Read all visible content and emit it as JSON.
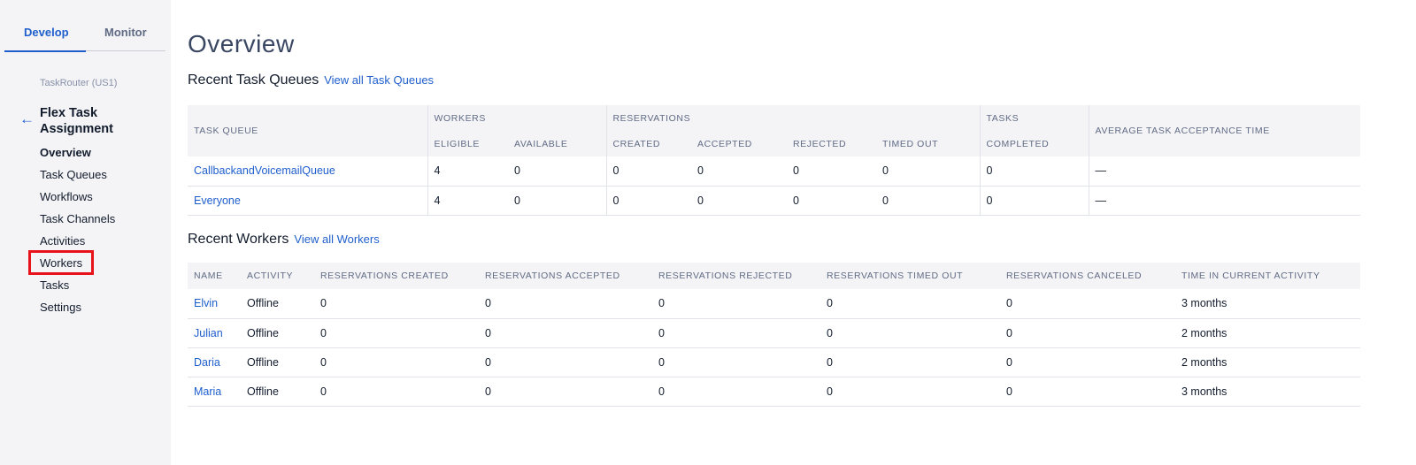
{
  "sidebar": {
    "tabs": {
      "develop": "Develop",
      "monitor": "Monitor"
    },
    "breadcrumb": "TaskRouter (US1)",
    "service": "Flex Task Assignment",
    "back_icon": "arrow-left-icon",
    "items": [
      "Overview",
      "Task Queues",
      "Workflows",
      "Task Channels",
      "Activities",
      "Workers",
      "Tasks",
      "Settings"
    ],
    "active": "Overview",
    "highlighted": "Workers"
  },
  "colors": {
    "accent": "#1f5fcc",
    "highlight": "#e8121a"
  },
  "page_title": "Overview",
  "queues": {
    "title": "Recent Task Queues",
    "link": "View all Task Queues",
    "headers": {
      "task_queue": "TASK QUEUE",
      "workers": "WORKERS",
      "reservations": "RESERVATIONS",
      "tasks": "TASKS",
      "avg": "AVERAGE TASK ACCEPTANCE TIME",
      "eligible": "ELIGIBLE",
      "available": "AVAILABLE",
      "created": "CREATED",
      "accepted": "ACCEPTED",
      "rejected": "REJECTED",
      "timed_out": "TIMED OUT",
      "completed": "COMPLETED"
    },
    "rows": [
      [
        "CallbackandVoicemailQueue",
        "4",
        "0",
        "0",
        "0",
        "0",
        "0",
        "0",
        "—"
      ],
      [
        "Everyone",
        "4",
        "0",
        "0",
        "0",
        "0",
        "0",
        "0",
        "—"
      ]
    ]
  },
  "workers": {
    "title": "Recent Workers",
    "link": "View all Workers",
    "headers": [
      "NAME",
      "ACTIVITY",
      "RESERVATIONS CREATED",
      "RESERVATIONS ACCEPTED",
      "RESERVATIONS REJECTED",
      "RESERVATIONS TIMED OUT",
      "RESERVATIONS CANCELED",
      "TIME IN CURRENT ACTIVITY"
    ],
    "rows": [
      [
        "Elvin",
        "Offline",
        "0",
        "0",
        "0",
        "0",
        "0",
        "3 months"
      ],
      [
        "Julian",
        "Offline",
        "0",
        "0",
        "0",
        "0",
        "0",
        "2 months"
      ],
      [
        "Daria",
        "Offline",
        "0",
        "0",
        "0",
        "0",
        "0",
        "2 months"
      ],
      [
        "Maria",
        "Offline",
        "0",
        "0",
        "0",
        "0",
        "0",
        "3 months"
      ]
    ]
  }
}
